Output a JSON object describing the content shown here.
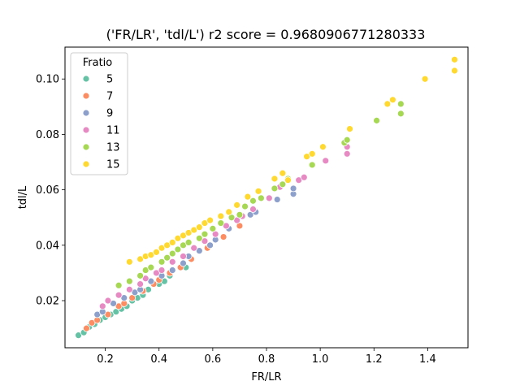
{
  "chart_data": {
    "type": "scatter",
    "title": "('FR/LR', 'tdl/L') r2 score = 0.9680906771280333",
    "xlabel": "FR/LR",
    "ylabel": "tdl/L",
    "xlim": [
      0.05,
      1.55
    ],
    "ylim": [
      0.003,
      0.1115
    ],
    "xticks": [
      0.2,
      0.4,
      0.6,
      0.8,
      1.0,
      1.2,
      1.4
    ],
    "yticks": [
      0.02,
      0.04,
      0.06,
      0.08,
      0.1
    ],
    "grid": false,
    "legend": {
      "title": "Fratio",
      "position": "top-left"
    },
    "series": [
      {
        "name": "5",
        "color": "#66c2a5",
        "points": [
          [
            0.1,
            0.0075
          ],
          [
            0.12,
            0.0085
          ],
          [
            0.14,
            0.0105
          ],
          [
            0.16,
            0.0115
          ],
          [
            0.18,
            0.013
          ],
          [
            0.2,
            0.014
          ],
          [
            0.22,
            0.015
          ],
          [
            0.24,
            0.016
          ],
          [
            0.26,
            0.017
          ],
          [
            0.28,
            0.018
          ],
          [
            0.3,
            0.02
          ],
          [
            0.32,
            0.021
          ],
          [
            0.34,
            0.022
          ],
          [
            0.36,
            0.024
          ],
          [
            0.4,
            0.026
          ],
          [
            0.42,
            0.027
          ],
          [
            0.44,
            0.029
          ],
          [
            0.5,
            0.032
          ]
        ]
      },
      {
        "name": "7",
        "color": "#fc8d62",
        "points": [
          [
            0.13,
            0.01
          ],
          [
            0.15,
            0.012
          ],
          [
            0.17,
            0.013
          ],
          [
            0.21,
            0.015
          ],
          [
            0.25,
            0.018
          ],
          [
            0.27,
            0.019
          ],
          [
            0.3,
            0.021
          ],
          [
            0.34,
            0.0235
          ],
          [
            0.38,
            0.026
          ],
          [
            0.4,
            0.0275
          ],
          [
            0.44,
            0.03
          ],
          [
            0.48,
            0.032
          ],
          [
            0.52,
            0.035
          ],
          [
            0.58,
            0.039
          ],
          [
            0.64,
            0.043
          ],
          [
            0.7,
            0.047
          ],
          [
            0.74,
            0.051
          ]
        ]
      },
      {
        "name": "9",
        "color": "#8da0cb",
        "points": [
          [
            0.17,
            0.015
          ],
          [
            0.19,
            0.016
          ],
          [
            0.23,
            0.019
          ],
          [
            0.27,
            0.021
          ],
          [
            0.31,
            0.023
          ],
          [
            0.33,
            0.024
          ],
          [
            0.37,
            0.027
          ],
          [
            0.41,
            0.029
          ],
          [
            0.45,
            0.031
          ],
          [
            0.49,
            0.0335
          ],
          [
            0.51,
            0.036
          ],
          [
            0.55,
            0.038
          ],
          [
            0.59,
            0.04
          ],
          [
            0.61,
            0.042
          ],
          [
            0.66,
            0.046
          ],
          [
            0.69,
            0.049
          ],
          [
            0.74,
            0.051
          ],
          [
            0.76,
            0.052
          ],
          [
            0.84,
            0.0565
          ],
          [
            0.9,
            0.0585
          ],
          [
            0.9,
            0.0605
          ]
        ]
      },
      {
        "name": "11",
        "color": "#e78ac3",
        "points": [
          [
            0.19,
            0.018
          ],
          [
            0.21,
            0.02
          ],
          [
            0.25,
            0.022
          ],
          [
            0.29,
            0.024
          ],
          [
            0.33,
            0.026
          ],
          [
            0.35,
            0.028
          ],
          [
            0.39,
            0.03
          ],
          [
            0.41,
            0.031
          ],
          [
            0.45,
            0.034
          ],
          [
            0.49,
            0.036
          ],
          [
            0.53,
            0.039
          ],
          [
            0.57,
            0.0415
          ],
          [
            0.61,
            0.044
          ],
          [
            0.65,
            0.047
          ],
          [
            0.69,
            0.049
          ],
          [
            0.71,
            0.0505
          ],
          [
            0.75,
            0.053
          ],
          [
            0.81,
            0.057
          ],
          [
            0.85,
            0.061
          ],
          [
            0.92,
            0.0635
          ],
          [
            0.94,
            0.0645
          ],
          [
            1.02,
            0.0705
          ],
          [
            1.1,
            0.073
          ],
          [
            1.1,
            0.0755
          ]
        ]
      },
      {
        "name": "13",
        "color": "#a6d854",
        "points": [
          [
            0.25,
            0.0255
          ],
          [
            0.29,
            0.027
          ],
          [
            0.33,
            0.029
          ],
          [
            0.35,
            0.031
          ],
          [
            0.37,
            0.032
          ],
          [
            0.41,
            0.034
          ],
          [
            0.43,
            0.0355
          ],
          [
            0.45,
            0.037
          ],
          [
            0.47,
            0.0385
          ],
          [
            0.49,
            0.04
          ],
          [
            0.51,
            0.041
          ],
          [
            0.55,
            0.0425
          ],
          [
            0.57,
            0.044
          ],
          [
            0.6,
            0.046
          ],
          [
            0.63,
            0.048
          ],
          [
            0.67,
            0.05
          ],
          [
            0.7,
            0.051
          ],
          [
            0.72,
            0.054
          ],
          [
            0.75,
            0.056
          ],
          [
            0.78,
            0.057
          ],
          [
            0.83,
            0.0605
          ],
          [
            0.86,
            0.062
          ],
          [
            0.88,
            0.064
          ],
          [
            0.97,
            0.069
          ],
          [
            1.09,
            0.077
          ],
          [
            1.1,
            0.078
          ],
          [
            1.21,
            0.085
          ],
          [
            1.3,
            0.0875
          ],
          [
            1.3,
            0.091
          ]
        ]
      },
      {
        "name": "15",
        "color": "#ffd92f",
        "points": [
          [
            0.29,
            0.034
          ],
          [
            0.33,
            0.035
          ],
          [
            0.35,
            0.036
          ],
          [
            0.37,
            0.0365
          ],
          [
            0.39,
            0.0375
          ],
          [
            0.41,
            0.039
          ],
          [
            0.43,
            0.04
          ],
          [
            0.45,
            0.041
          ],
          [
            0.47,
            0.0425
          ],
          [
            0.49,
            0.0435
          ],
          [
            0.51,
            0.0445
          ],
          [
            0.53,
            0.0455
          ],
          [
            0.55,
            0.0465
          ],
          [
            0.57,
            0.048
          ],
          [
            0.59,
            0.049
          ],
          [
            0.63,
            0.0505
          ],
          [
            0.66,
            0.052
          ],
          [
            0.69,
            0.0545
          ],
          [
            0.73,
            0.0575
          ],
          [
            0.77,
            0.0595
          ],
          [
            0.83,
            0.064
          ],
          [
            0.86,
            0.066
          ],
          [
            0.88,
            0.0635
          ],
          [
            0.95,
            0.072
          ],
          [
            0.97,
            0.073
          ],
          [
            1.01,
            0.0755
          ],
          [
            1.11,
            0.082
          ],
          [
            1.25,
            0.091
          ],
          [
            1.27,
            0.0925
          ],
          [
            1.39,
            0.1
          ],
          [
            1.5,
            0.103
          ],
          [
            1.5,
            0.107
          ]
        ]
      }
    ]
  }
}
